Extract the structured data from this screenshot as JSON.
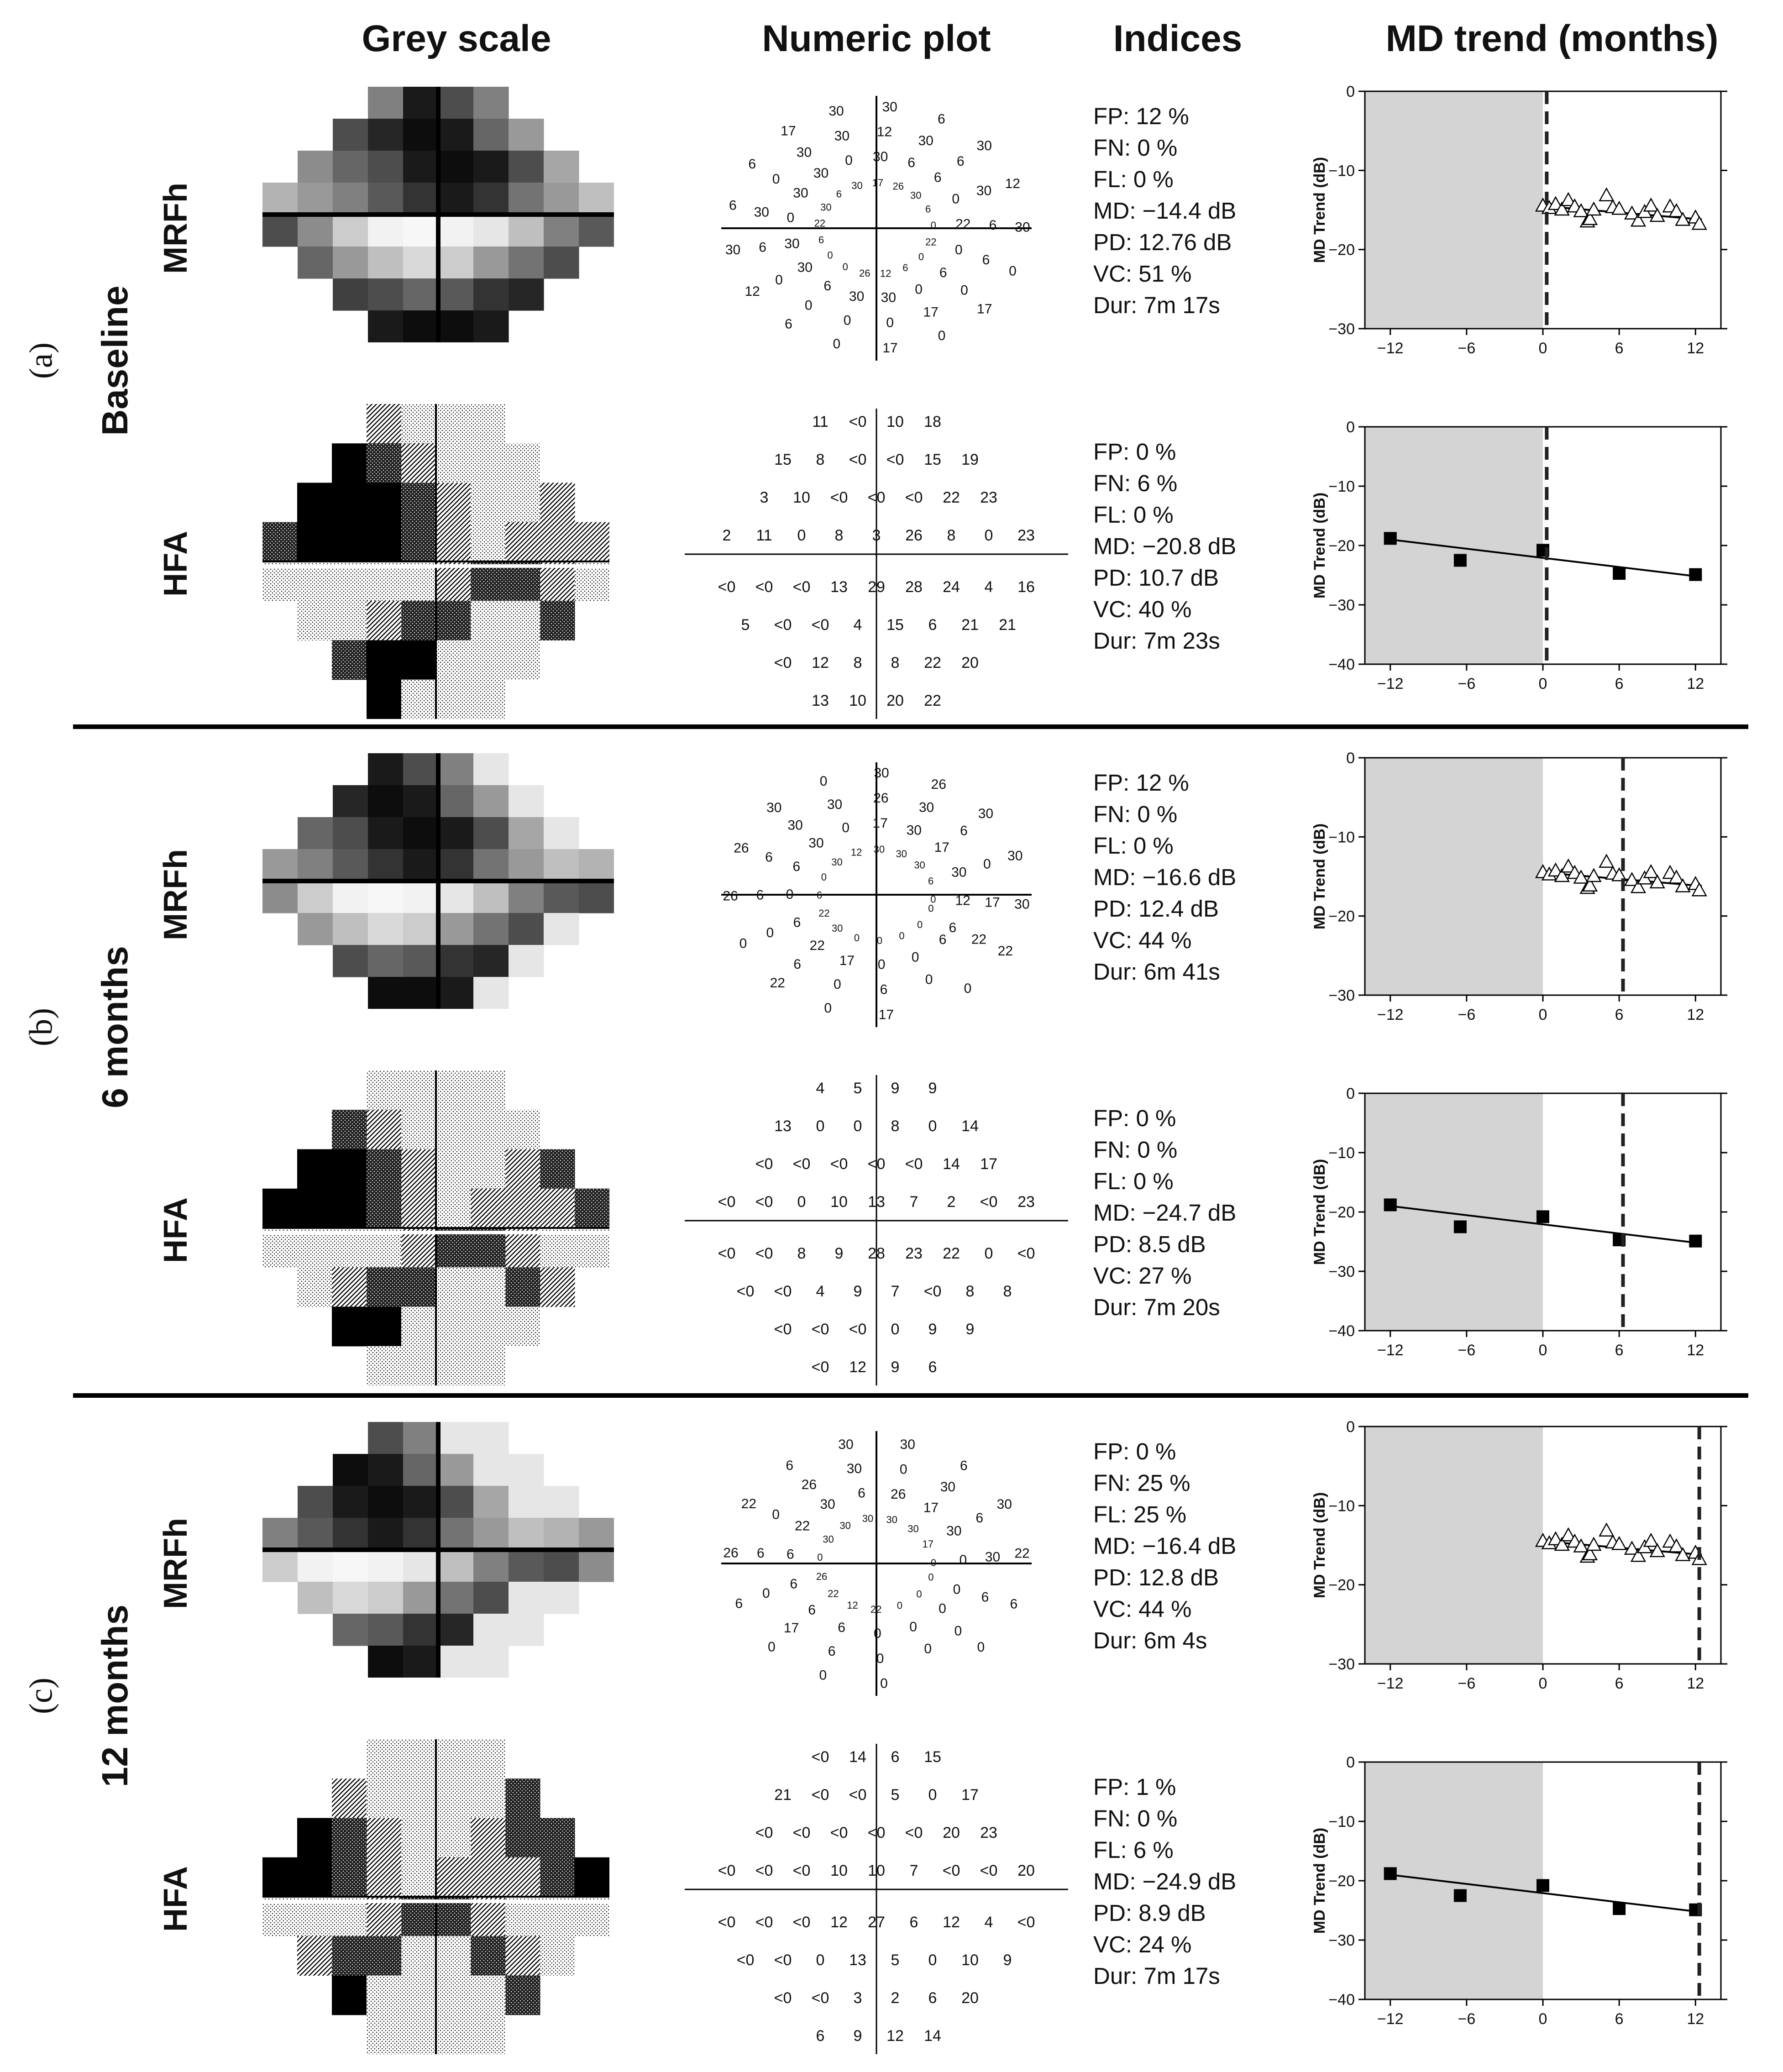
{
  "headers": {
    "grey_scale": "Grey scale",
    "numeric_plot": "Numeric plot",
    "indices": "Indices",
    "md_trend": "MD trend (months)"
  },
  "sections": [
    {
      "letter": "(a)",
      "name": "Baseline",
      "visit_month": 0,
      "tests": [
        {
          "name": "MRFh",
          "indices": [
            "FP: 12 %",
            "FN: 0 %",
            "FL: 0 %",
            "MD: −14.4 dB",
            "PD: 12.76 dB",
            "VC: 51 %",
            "Dur: 7m 17s"
          ],
          "numeric_values": [
            "22",
            "6",
            "17",
            "17",
            "0",
            "0",
            "0",
            "0",
            "6",
            "30",
            "0",
            "6",
            "12",
            "30",
            "0",
            "12",
            "26",
            "6",
            "0",
            "30",
            "0",
            "30",
            "6",
            "6",
            "0",
            "30",
            "30",
            "6",
            "6",
            "0",
            "0",
            "17",
            "22",
            "30",
            "30",
            "30",
            "30",
            "30",
            "30",
            "30",
            "6",
            "0",
            "12",
            "6",
            "30",
            "30",
            "30",
            "30",
            "17",
            "6",
            "6",
            "12",
            "26",
            "6",
            "30",
            "30",
            "30",
            "0",
            "6",
            "0",
            "6",
            "22",
            "6",
            "17",
            "0",
            "0",
            "0",
            "0"
          ]
        },
        {
          "name": "HFA",
          "indices": [
            "FP: 0 %",
            "FN: 6 %",
            "FL: 0 %",
            "MD: −20.8 dB",
            "PD: 10.7 dB",
            "VC: 40 %",
            "Dur: 7m 23s"
          ],
          "rows": [
            [
              "11",
              "<0",
              "10",
              "18"
            ],
            [
              "15",
              "8",
              "<0",
              "<0",
              "15",
              "19"
            ],
            [
              "3",
              "10",
              "<0",
              "<0",
              "<0",
              "22",
              "23"
            ],
            [
              "2",
              "11",
              "0",
              "8",
              "3",
              "26",
              "8",
              "0",
              "23"
            ],
            [
              "<0",
              "<0",
              "<0",
              "13",
              "29",
              "28",
              "24",
              "4",
              "16"
            ],
            [
              "5",
              "<0",
              "<0",
              "4",
              "15",
              "6",
              "21",
              "21"
            ],
            [
              "<0",
              "12",
              "8",
              "8",
              "22",
              "20"
            ],
            [
              "13",
              "10",
              "20",
              "22"
            ]
          ]
        }
      ]
    },
    {
      "letter": "(b)",
      "name": "6 months",
      "visit_month": 6,
      "tests": [
        {
          "name": "MRFh",
          "indices": [
            "FP: 12 %",
            "FN: 0 %",
            "FL: 0 %",
            "MD: −16.6 dB",
            "PD: 12.4 dB",
            "VC: 44 %",
            "Dur: 6m 41s"
          ],
          "numeric_values": [
            "0",
            "6",
            "0",
            "17",
            "0",
            "0",
            "6",
            "0",
            "0",
            "0",
            "0",
            "22",
            "0",
            "17",
            "6",
            "0",
            "0",
            "22",
            "0",
            "26",
            "30",
            "6",
            "6",
            "26",
            "22",
            "0",
            "6",
            "30",
            "6",
            "6",
            "30",
            "0",
            "0",
            "30",
            "30",
            "30",
            "30",
            "0",
            "26",
            "26",
            "12",
            "17",
            "30",
            "30",
            "30",
            "30",
            "6",
            "30",
            "30",
            "17",
            "0",
            "30",
            "30",
            "30",
            "17",
            "22",
            "6",
            "12",
            "22",
            "0",
            "0",
            "6"
          ]
        },
        {
          "name": "HFA",
          "indices": [
            "FP: 0 %",
            "FN: 0 %",
            "FL: 0 %",
            "MD: −24.7 dB",
            "PD: 8.5 dB",
            "VC: 27 %",
            "Dur: 7m 20s"
          ],
          "rows": [
            [
              "4",
              "5",
              "9",
              "9"
            ],
            [
              "13",
              "0",
              "0",
              "8",
              "0",
              "14"
            ],
            [
              "<0",
              "<0",
              "<0",
              "<0",
              "<0",
              "14",
              "17"
            ],
            [
              "<0",
              "<0",
              "0",
              "10",
              "13",
              "7",
              "2",
              "<0",
              "23"
            ],
            [
              "<0",
              "<0",
              "8",
              "9",
              "28",
              "23",
              "22",
              "0",
              "<0"
            ],
            [
              "<0",
              "<0",
              "4",
              "9",
              "7",
              "<0",
              "8",
              "8"
            ],
            [
              "<0",
              "<0",
              "<0",
              "0",
              "9",
              "9"
            ],
            [
              "<0",
              "12",
              "9",
              "6"
            ]
          ]
        }
      ]
    },
    {
      "letter": "(c)",
      "name": "12 months",
      "visit_month": 12,
      "tests": [
        {
          "name": "MRFh",
          "indices": [
            "FP: 0 %",
            "FN: 25 %",
            "FL: 25 %",
            "MD: −16.4 dB",
            "PD: 12.8 dB",
            "VC: 44 %",
            "Dur: 6m 4s"
          ],
          "numeric_values": [
            "0",
            "0",
            "0",
            "0",
            "0",
            "0",
            "0",
            "0",
            "0",
            "0",
            "6",
            "0",
            "22",
            "6",
            "17",
            "6",
            "12",
            "6",
            "0",
            "26",
            "22",
            "6",
            "6",
            "22",
            "26",
            "6",
            "0",
            "6",
            "0",
            "22",
            "26",
            "30",
            "30",
            "30",
            "30",
            "30",
            "30",
            "6",
            "0",
            "6",
            "30",
            "26",
            "30",
            "30",
            "30",
            "17",
            "6",
            "22",
            "30",
            "30",
            "30",
            "6",
            "17",
            "0",
            "6",
            "0",
            "0",
            "0",
            "0"
          ]
        },
        {
          "name": "HFA",
          "indices": [
            "FP: 1 %",
            "FN: 0 %",
            "FL: 6 %",
            "MD: −24.9 dB",
            "PD: 8.9 dB",
            "VC: 24 %",
            "Dur: 7m 17s"
          ],
          "rows": [
            [
              "<0",
              "14",
              "6",
              "15"
            ],
            [
              "21",
              "<0",
              "<0",
              "5",
              "0",
              "17"
            ],
            [
              "<0",
              "<0",
              "<0",
              "<0",
              "<0",
              "20",
              "23"
            ],
            [
              "<0",
              "<0",
              "<0",
              "10",
              "10",
              "7",
              "<0",
              "<0",
              "20"
            ],
            [
              "<0",
              "<0",
              "<0",
              "12",
              "27",
              "6",
              "12",
              "4",
              "<0"
            ],
            [
              "<0",
              "<0",
              "0",
              "13",
              "5",
              "0",
              "10",
              "9"
            ],
            [
              "<0",
              "<0",
              "3",
              "2",
              "6",
              "20"
            ],
            [
              "6",
              "9",
              "12",
              "14"
            ]
          ]
        }
      ]
    }
  ],
  "chart_data": [
    {
      "type": "scatter",
      "title": "MD trend (months)",
      "ylabel": "MD Trend (dB)",
      "series": [
        {
          "name": "MRFh",
          "marker": "open-triangle",
          "x": [
            0,
            0.5,
            1,
            1.5,
            2,
            2.5,
            3,
            3.5,
            3.7,
            4,
            5,
            5.5,
            6,
            7,
            7.5,
            8,
            8.5,
            9,
            10,
            10.5,
            11,
            12,
            12.3
          ],
          "y": [
            -14.5,
            -14.8,
            -14.3,
            -15,
            -13.8,
            -14.6,
            -15.2,
            -16.5,
            -16.2,
            -15,
            -13.2,
            -14.7,
            -14.9,
            -15.5,
            -16.4,
            -15.3,
            -14.5,
            -15.8,
            -14.6,
            -15.2,
            -16.3,
            -16,
            -16.8
          ]
        },
        {
          "name": "fit",
          "line": true,
          "x": [
            0,
            12.5
          ],
          "y": [
            -14.5,
            -16.2
          ]
        }
      ],
      "xlim": [
        -14,
        14
      ],
      "ylim": [
        -30,
        0
      ],
      "xticks": [
        -12,
        -6,
        0,
        6,
        12
      ],
      "yticks": [
        0,
        -10,
        -20,
        -30
      ],
      "xtick_labels": [
        "−12",
        "−6",
        "0",
        "6",
        "12"
      ],
      "ytick_labels": [
        "0",
        "−10",
        "−20",
        "−30"
      ],
      "shade_before": 0
    },
    {
      "type": "scatter",
      "title": "MD trend (months)",
      "ylabel": "MD Trend (dB)",
      "series": [
        {
          "name": "HFA",
          "marker": "filled-square",
          "x": [
            -12,
            -6.5,
            0,
            6,
            12
          ],
          "y": [
            -18.8,
            -22.5,
            -20.8,
            -24.7,
            -24.9
          ]
        },
        {
          "name": "fit",
          "line": true,
          "x": [
            -12,
            12.5
          ],
          "y": [
            -19,
            -25.3
          ]
        }
      ],
      "xlim": [
        -14,
        14
      ],
      "ylim": [
        -40,
        0
      ],
      "xticks": [
        -12,
        -6,
        0,
        6,
        12
      ],
      "yticks": [
        0,
        -10,
        -20,
        -30,
        -40
      ],
      "xtick_labels": [
        "−12",
        "−6",
        "0",
        "6",
        "12"
      ],
      "ytick_labels": [
        "0",
        "−10",
        "−20",
        "−30",
        "−40"
      ],
      "shade_before": 0
    }
  ]
}
